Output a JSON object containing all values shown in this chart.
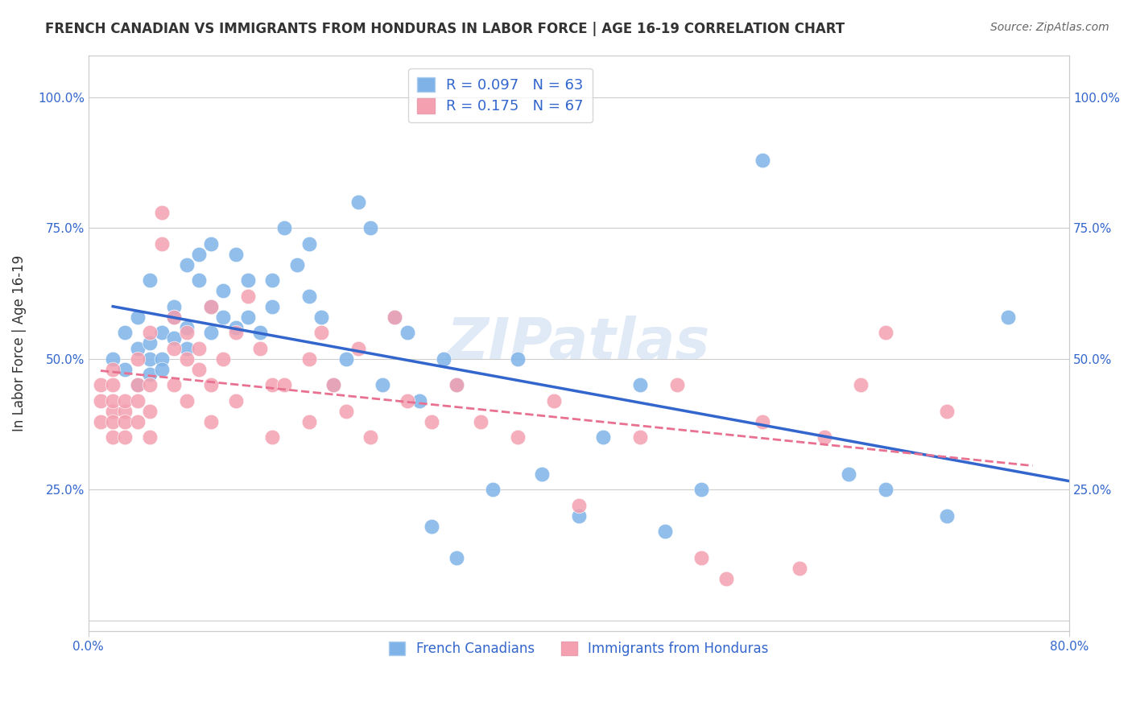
{
  "title": "FRENCH CANADIAN VS IMMIGRANTS FROM HONDURAS IN LABOR FORCE | AGE 16-19 CORRELATION CHART",
  "source": "Source: ZipAtlas.com",
  "xlabel": "",
  "ylabel": "In Labor Force | Age 16-19",
  "xlim": [
    0.0,
    0.8
  ],
  "ylim": [
    -0.02,
    1.08
  ],
  "yticks": [
    0.0,
    0.25,
    0.5,
    0.75,
    1.0
  ],
  "ytick_labels": [
    "",
    "25.0%",
    "50.0%",
    "75.0%",
    "100.0%"
  ],
  "blue_R": 0.097,
  "blue_N": 63,
  "pink_R": 0.175,
  "pink_N": 67,
  "blue_color": "#7fb3e8",
  "pink_color": "#f4a0b0",
  "blue_edge_color": "#aaccee",
  "pink_edge_color": "#e8a0b0",
  "blue_line_color": "#3366cc",
  "pink_line_color": "#e87090",
  "watermark": "ZIPatlas",
  "blue_scatter_x": [
    0.02,
    0.03,
    0.03,
    0.04,
    0.04,
    0.04,
    0.05,
    0.05,
    0.05,
    0.05,
    0.06,
    0.06,
    0.06,
    0.07,
    0.07,
    0.07,
    0.08,
    0.08,
    0.08,
    0.09,
    0.09,
    0.1,
    0.1,
    0.1,
    0.11,
    0.11,
    0.12,
    0.12,
    0.13,
    0.13,
    0.14,
    0.15,
    0.15,
    0.16,
    0.17,
    0.18,
    0.18,
    0.19,
    0.2,
    0.21,
    0.22,
    0.23,
    0.24,
    0.25,
    0.26,
    0.27,
    0.28,
    0.29,
    0.3,
    0.3,
    0.33,
    0.35,
    0.37,
    0.4,
    0.42,
    0.45,
    0.47,
    0.5,
    0.55,
    0.62,
    0.65,
    0.7,
    0.75
  ],
  "blue_scatter_y": [
    0.5,
    0.55,
    0.48,
    0.52,
    0.45,
    0.58,
    0.5,
    0.47,
    0.53,
    0.65,
    0.55,
    0.5,
    0.48,
    0.6,
    0.54,
    0.58,
    0.68,
    0.52,
    0.56,
    0.65,
    0.7,
    0.6,
    0.55,
    0.72,
    0.58,
    0.63,
    0.7,
    0.56,
    0.65,
    0.58,
    0.55,
    0.65,
    0.6,
    0.75,
    0.68,
    0.62,
    0.72,
    0.58,
    0.45,
    0.5,
    0.8,
    0.75,
    0.45,
    0.58,
    0.55,
    0.42,
    0.18,
    0.5,
    0.45,
    0.12,
    0.25,
    0.5,
    0.28,
    0.2,
    0.35,
    0.45,
    0.17,
    0.25,
    0.88,
    0.28,
    0.25,
    0.2,
    0.58
  ],
  "pink_scatter_x": [
    0.01,
    0.01,
    0.01,
    0.02,
    0.02,
    0.02,
    0.02,
    0.02,
    0.02,
    0.03,
    0.03,
    0.03,
    0.03,
    0.04,
    0.04,
    0.04,
    0.04,
    0.05,
    0.05,
    0.05,
    0.05,
    0.06,
    0.06,
    0.07,
    0.07,
    0.07,
    0.08,
    0.08,
    0.08,
    0.09,
    0.09,
    0.1,
    0.1,
    0.1,
    0.11,
    0.12,
    0.12,
    0.13,
    0.14,
    0.15,
    0.15,
    0.16,
    0.18,
    0.18,
    0.19,
    0.2,
    0.21,
    0.22,
    0.23,
    0.25,
    0.26,
    0.28,
    0.3,
    0.32,
    0.35,
    0.38,
    0.4,
    0.45,
    0.48,
    0.5,
    0.52,
    0.55,
    0.58,
    0.6,
    0.63,
    0.65,
    0.7
  ],
  "pink_scatter_y": [
    0.42,
    0.38,
    0.45,
    0.35,
    0.4,
    0.45,
    0.38,
    0.42,
    0.48,
    0.4,
    0.38,
    0.42,
    0.35,
    0.45,
    0.38,
    0.42,
    0.5,
    0.35,
    0.4,
    0.45,
    0.55,
    0.72,
    0.78,
    0.45,
    0.52,
    0.58,
    0.42,
    0.5,
    0.55,
    0.48,
    0.52,
    0.38,
    0.45,
    0.6,
    0.5,
    0.42,
    0.55,
    0.62,
    0.52,
    0.45,
    0.35,
    0.45,
    0.38,
    0.5,
    0.55,
    0.45,
    0.4,
    0.52,
    0.35,
    0.58,
    0.42,
    0.38,
    0.45,
    0.38,
    0.35,
    0.42,
    0.22,
    0.35,
    0.45,
    0.12,
    0.08,
    0.38,
    0.1,
    0.35,
    0.45,
    0.55,
    0.4
  ]
}
